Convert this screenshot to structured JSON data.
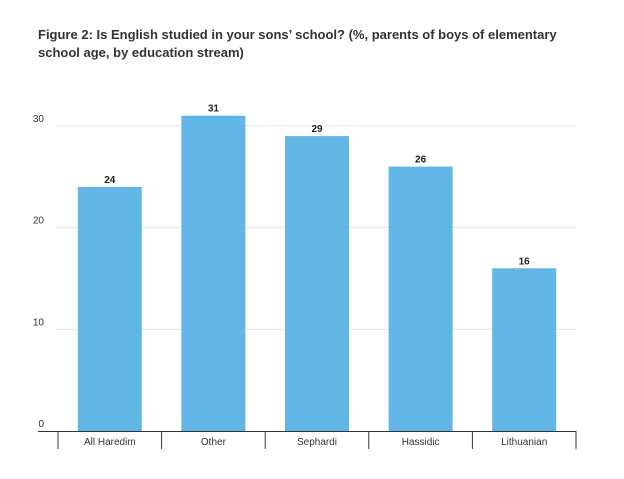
{
  "chart_data": {
    "type": "bar",
    "title": "Figure 2: Is English studied in your sons’ school? (%, parents of boys of elementary school age, by education stream)",
    "xlabel": "",
    "ylabel": "",
    "categories": [
      "All Haredim",
      "Other",
      "Sephardi",
      "Hassidic",
      "Lithuanian"
    ],
    "values": [
      24,
      31,
      29,
      26,
      16
    ],
    "data_labels": [
      "24",
      "31",
      "29",
      "26",
      "16"
    ],
    "ylim": [
      0,
      30
    ],
    "yticks": [
      0,
      10,
      20,
      30
    ],
    "ytick_labels": [
      "0",
      "10",
      "20",
      "30"
    ],
    "grid": true,
    "legend": "none",
    "bar_color": "#62b6e6"
  }
}
